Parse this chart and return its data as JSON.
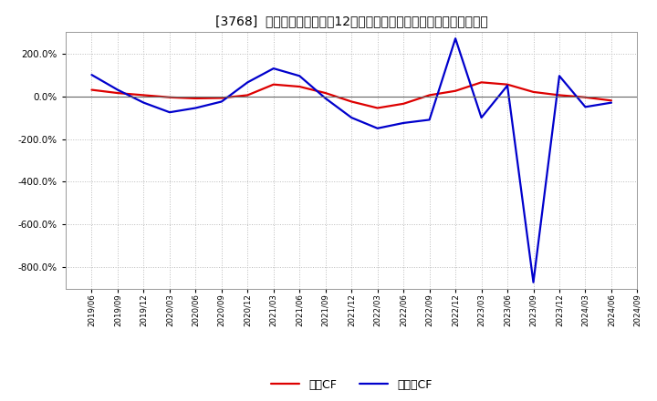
{
  "title": "[3768]  キャッシュフローの12か月移動合計の対前年同期増減率の推移",
  "background_color": "#ffffff",
  "plot_bg_color": "#ffffff",
  "grid_color": "#bbbbbb",
  "x_labels": [
    "2019/06",
    "2019/09",
    "2019/12",
    "2020/03",
    "2020/06",
    "2020/09",
    "2020/12",
    "2021/03",
    "2021/06",
    "2021/09",
    "2021/12",
    "2022/03",
    "2022/06",
    "2022/09",
    "2022/12",
    "2023/03",
    "2023/06",
    "2023/09",
    "2023/12",
    "2024/03",
    "2024/06",
    "2024/09"
  ],
  "eigyo_cf": [
    30,
    15,
    5,
    -5,
    -10,
    -8,
    5,
    55,
    45,
    15,
    -25,
    -55,
    -35,
    5,
    25,
    65,
    55,
    20,
    5,
    -5,
    -20,
    null
  ],
  "free_cf": [
    100,
    30,
    -30,
    -75,
    -55,
    -25,
    65,
    130,
    95,
    -10,
    -100,
    -150,
    -125,
    -110,
    270,
    -100,
    50,
    -870,
    95,
    -50,
    -30,
    null
  ],
  "ylim": [
    -900,
    300
  ],
  "yticks": [
    200,
    0,
    -200,
    -400,
    -600,
    -800
  ],
  "eigyo_color": "#dd0000",
  "free_color": "#0000cc",
  "line_width": 1.6,
  "legend_eigyo": "営業CF",
  "legend_free": "フリーCF"
}
